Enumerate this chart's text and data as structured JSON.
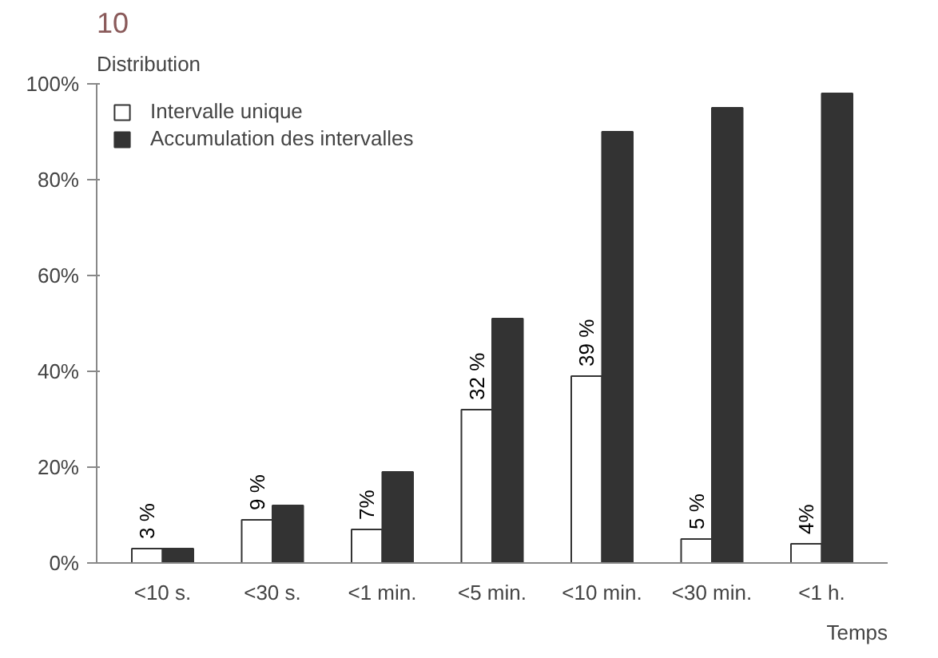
{
  "chart_data": {
    "type": "bar",
    "title": "10",
    "ylabel": "Distribution",
    "xlabel": "Temps",
    "categories": [
      "<10 s.",
      "<30 s.",
      "<1 min.",
      "<5 min.",
      "<10 min.",
      "<30 min.",
      "<1 h."
    ],
    "series": [
      {
        "name": "Intervalle unique",
        "color": "#ffffff",
        "values": [
          3,
          9,
          7,
          32,
          39,
          5,
          4
        ],
        "value_labels": [
          "3 %",
          "9 %",
          "7%",
          "32 %",
          "39 %",
          "5 %",
          "4%"
        ]
      },
      {
        "name": "Accumulation des intervalles",
        "color": "#333333",
        "values": [
          3,
          12,
          19,
          51,
          90,
          95,
          98
        ]
      }
    ],
    "ylim": [
      0,
      100
    ],
    "yticks": [
      {
        "value": 0,
        "label": "0%"
      },
      {
        "value": 20,
        "label": "20%"
      },
      {
        "value": 40,
        "label": "40%"
      },
      {
        "value": 60,
        "label": "60%"
      },
      {
        "value": 80,
        "label": "80%"
      },
      {
        "value": 100,
        "label": "100%"
      }
    ],
    "grid": false,
    "legend": "top left"
  }
}
